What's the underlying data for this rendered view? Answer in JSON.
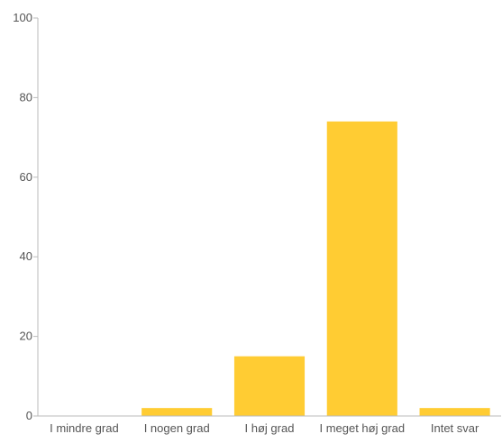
{
  "chart_data": {
    "type": "bar",
    "categories": [
      "I mindre grad",
      "I nogen grad",
      "I høj grad",
      "I meget høj grad",
      "Intet svar"
    ],
    "values": [
      0,
      2,
      15,
      74,
      2
    ],
    "title": "",
    "xlabel": "",
    "ylabel": "",
    "ylim": [
      0,
      100
    ],
    "yticks": [
      0,
      20,
      40,
      60,
      80,
      100
    ],
    "grid": false,
    "legend": "none",
    "bar_color": "#FFCC33",
    "axis_color": "#bbbbbb",
    "text_color": "#555555"
  }
}
